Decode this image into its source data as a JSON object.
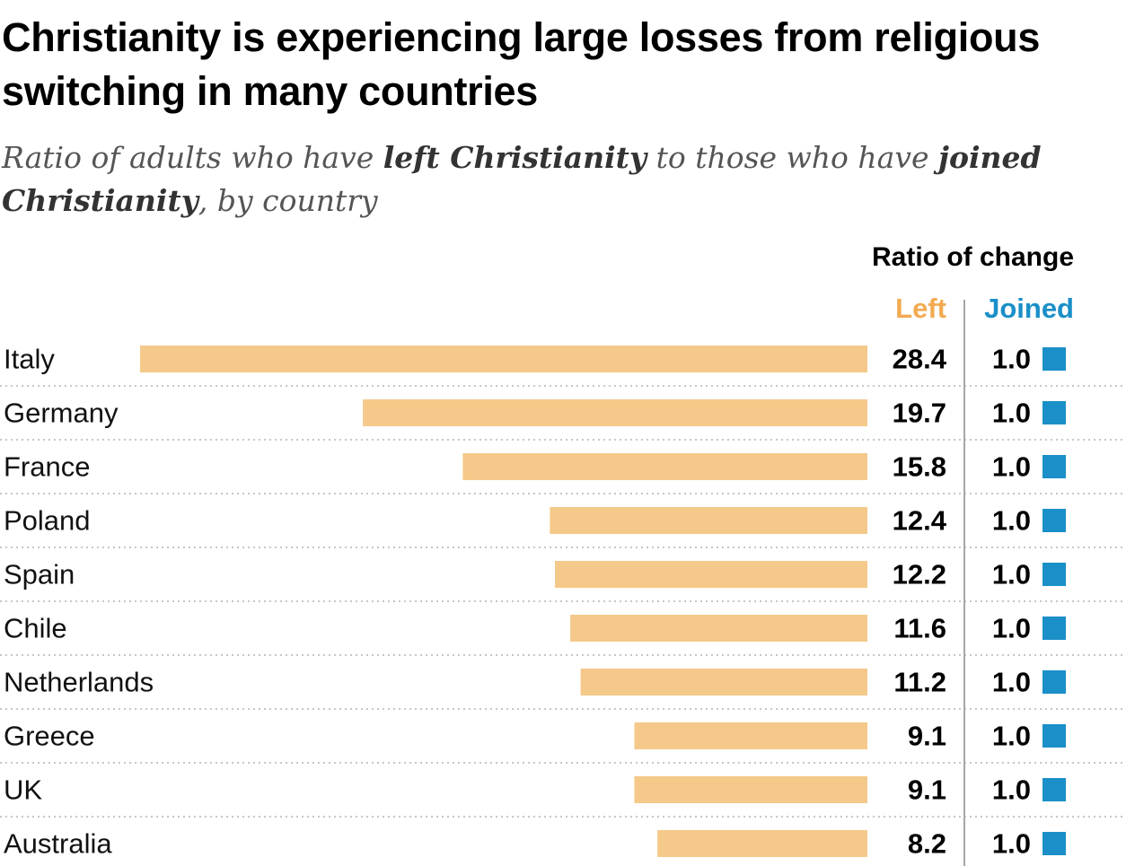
{
  "title": "Christianity is experiencing large losses from religious switching in many countries",
  "subtitle": {
    "part1": "Ratio of adults who have ",
    "bold1": "left Christianity",
    "part2": " to those who have ",
    "bold2": "joined Christianity",
    "part3": ", by country"
  },
  "column_group_header": "Ratio of change",
  "column_left_label": "Left",
  "column_joined_label": "Joined",
  "colors": {
    "left_bar": "#f5c98a",
    "left_header": "#f2ab52",
    "joined": "#1a8fc8",
    "divider": "#a6a6a6",
    "row_rule": "#b3b3b3"
  },
  "chart_data": {
    "type": "bar",
    "orientation": "horizontal",
    "bar_direction": "right-to-left",
    "categories": [
      "Italy",
      "Germany",
      "France",
      "Poland",
      "Spain",
      "Chile",
      "Netherlands",
      "Greece",
      "UK",
      "Australia"
    ],
    "series": [
      {
        "name": "Left",
        "values": [
          28.4,
          19.7,
          15.8,
          12.4,
          12.2,
          11.6,
          11.2,
          9.1,
          9.1,
          8.2
        ],
        "labels": [
          "28.4",
          "19.7",
          "15.8",
          "12.4",
          "12.2",
          "11.6",
          "11.2",
          "9.1",
          "9.1",
          "8.2"
        ]
      },
      {
        "name": "Joined",
        "values": [
          1.0,
          1.0,
          1.0,
          1.0,
          1.0,
          1.0,
          1.0,
          1.0,
          1.0,
          1.0
        ],
        "labels": [
          "1.0",
          "1.0",
          "1.0",
          "1.0",
          "1.0",
          "1.0",
          "1.0",
          "1.0",
          "1.0",
          "1.0"
        ]
      }
    ],
    "title": "Christianity is experiencing large losses from religious switching in many countries",
    "xlabel": "",
    "ylabel": "",
    "grid": false
  }
}
